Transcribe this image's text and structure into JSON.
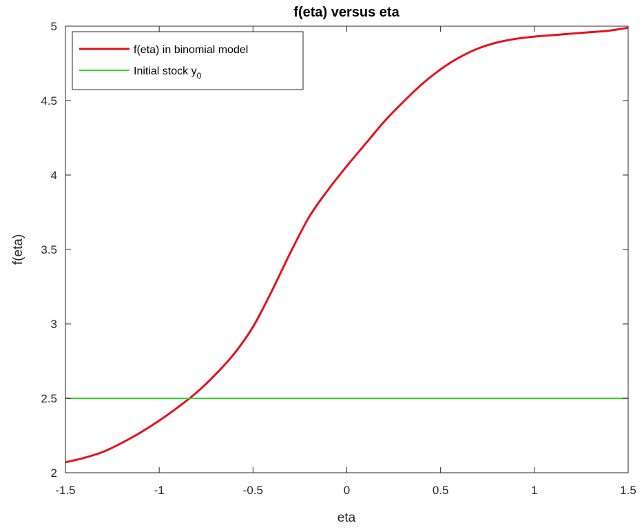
{
  "chart_data": {
    "type": "line",
    "title": "f(eta) versus eta",
    "xlabel": "eta",
    "ylabel": "f(eta)",
    "xlim": [
      -1.5,
      1.5
    ],
    "ylim": [
      2,
      5
    ],
    "xticks": [
      -1.5,
      -1,
      -0.5,
      0,
      0.5,
      1,
      1.5
    ],
    "xtick_labels": [
      "-1.5",
      "-1",
      "-0.5",
      "0",
      "0.5",
      "1",
      "1.5"
    ],
    "yticks": [
      2,
      2.5,
      3,
      3.5,
      4,
      4.5,
      5
    ],
    "ytick_labels": [
      "2",
      "2.5",
      "3",
      "3.5",
      "4",
      "4.5",
      "5"
    ],
    "grid": false,
    "legend_position": "top-left",
    "series": [
      {
        "name": "f(eta) in binomial model",
        "color": "#e8101a",
        "x": [
          -1.5,
          -1.4,
          -1.3,
          -1.2,
          -1.1,
          -1.0,
          -0.9,
          -0.8,
          -0.7,
          -0.6,
          -0.5,
          -0.4,
          -0.3,
          -0.2,
          -0.1,
          0.0,
          0.1,
          0.2,
          0.3,
          0.4,
          0.5,
          0.6,
          0.7,
          0.8,
          0.9,
          1.0,
          1.1,
          1.2,
          1.3,
          1.4,
          1.5
        ],
        "y": [
          2.07,
          2.1,
          2.14,
          2.2,
          2.27,
          2.35,
          2.44,
          2.54,
          2.66,
          2.8,
          2.98,
          3.22,
          3.48,
          3.72,
          3.9,
          4.06,
          4.21,
          4.36,
          4.49,
          4.61,
          4.71,
          4.79,
          4.85,
          4.89,
          4.915,
          4.93,
          4.94,
          4.95,
          4.96,
          4.97,
          4.99
        ]
      },
      {
        "name": "Initial stock y",
        "name_subscript": "0",
        "color": "#22dd22",
        "x": [
          -1.5,
          1.5
        ],
        "y": [
          2.5,
          2.5
        ]
      }
    ]
  }
}
